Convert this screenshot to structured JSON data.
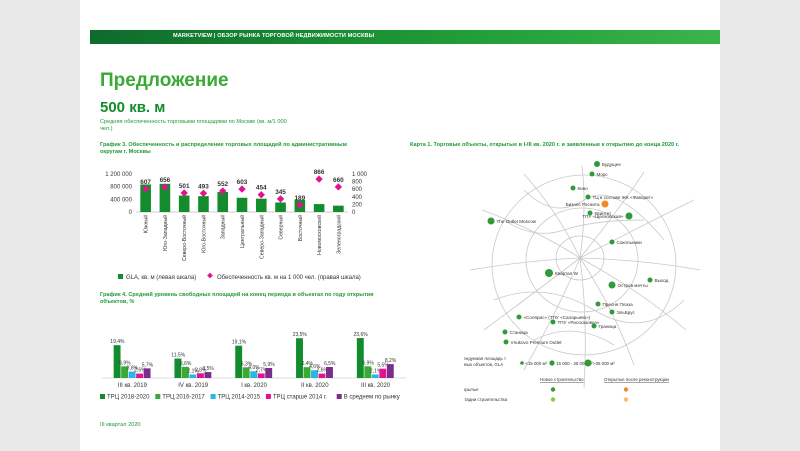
{
  "header": {
    "text": "MARKETVIEW | ОБЗОР РЫНКА ТОРГОВОЙ НЕДВИЖИМОСТИ МОСКВЫ"
  },
  "title": "Предложение",
  "big_value": "500 кв. м",
  "subtitle": "Средняя обеспеченность торговыми площадями по Москве (кв. м/1 000 чел.)",
  "footer": "III квартал 2020",
  "colors": {
    "green": "#128c2c",
    "light_green": "#3aa935",
    "magenta": "#e0148c",
    "cyan": "#27b6e6",
    "purple": "#7b2d8e"
  },
  "chart_data": [
    {
      "type": "bar",
      "title": "График 3. Обеспеченность и распределение торговых площадей по административным округам г. Москвы",
      "categories": [
        "Южный",
        "Юго-Западный",
        "Северо-Восточный",
        "Юго-Восточный",
        "Западный",
        "Центральный",
        "Северо-Западный",
        "Северный",
        "Восточный",
        "Новомосковский",
        "Зеленоградский"
      ],
      "series": [
        {
          "name": "GLA, кв. м (левая шкала)",
          "values": [
            870000,
            890000,
            520000,
            500000,
            630000,
            450000,
            420000,
            300000,
            380000,
            250000,
            200000
          ]
        },
        {
          "name": "Обеспеченность кв. м на 1 000 чел. (правая шкала)",
          "values": [
            607,
            656,
            501,
            493,
            552,
            603,
            454,
            345,
            189,
            866,
            660
          ]
        }
      ],
      "left_ticks": [
        "1 200 000",
        "800 000",
        "400 000",
        "0"
      ],
      "right_ticks": [
        "1 000",
        "800",
        "600",
        "400",
        "200",
        "0"
      ],
      "ylim_left": [
        0,
        1200000
      ],
      "ylim_right": [
        0,
        1000
      ]
    },
    {
      "type": "bar",
      "title": "График 4. Средний уровень свободных площадей на конец периода в объектах по году открытия объектов, %",
      "categories": [
        "III кв. 2019",
        "IV кв. 2019",
        "I кв. 2020",
        "II кв. 2020",
        "III кв. 2020"
      ],
      "series": [
        {
          "name": "ТРЦ 2018-2020",
          "values": [
            19.4,
            11.5,
            19.1,
            23.5,
            23.6
          ]
        },
        {
          "name": "ТРЦ 2016-2017",
          "values": [
            6.9,
            6.6,
            6.3,
            6.4,
            6.9
          ]
        },
        {
          "name": "ТРЦ 2014-2015",
          "values": [
            3.8,
            2.1,
            4.0,
            4.6,
            2.1
          ]
        },
        {
          "name": "ТРЦ старше 2014 г.",
          "values": [
            2.6,
            2.8,
            2.7,
            2.6,
            5.5
          ]
        },
        {
          "name": "В среднем по рынку",
          "values": [
            5.7,
            3.5,
            5.9,
            6.5,
            8.2
          ]
        }
      ],
      "labels": [
        [
          "19,4%",
          "6,9%",
          "3,8%",
          "2,6%",
          "5,7%"
        ],
        [
          "11,5%",
          "6,6%",
          "2,1%",
          "2,8%",
          "3,5%"
        ],
        [
          "19,1%",
          "6,3%",
          "4,0%",
          "2,7%",
          "5,9%"
        ],
        [
          "23,5%",
          "6,4%",
          "4,6%",
          "2,6%",
          "6,5%"
        ],
        [
          "23,6%",
          "6,9%",
          "2,1%",
          "5,5%",
          "8,2%"
        ]
      ],
      "ylim": [
        0,
        26
      ]
    }
  ],
  "map": {
    "title": "Карта 1. Торговые объекты, открытые в I-III кв. 2020 г. и заявленные к открытию до конца 2020 г.",
    "labels": [
      {
        "text": "Будущее",
        "c": "g"
      },
      {
        "text": "Mopc",
        "c": "g"
      },
      {
        "text": "Кино",
        "c": "g"
      },
      {
        "text": "ТЦ в составе ЖК «Фаворит»",
        "c": "g"
      },
      {
        "text": "Бизнес Роснита",
        "c": "o"
      },
      {
        "text": "ТПУ «Щелковская»",
        "c": "g"
      },
      {
        "text": "The Outlet Moscow",
        "c": "g"
      },
      {
        "text": "Квинтет",
        "c": "g"
      },
      {
        "text": "Сокольники",
        "c": "g"
      },
      {
        "text": "Квартал W",
        "c": "g"
      },
      {
        "text": "Остров мечты",
        "c": "g"
      },
      {
        "text": "Выход",
        "c": "g"
      },
      {
        "text": "Пресня Плаза",
        "c": "g"
      },
      {
        "text": "ЭльБрус",
        "c": "g"
      },
      {
        "text": "«Солярис» (ТПУ «Саларьево»)",
        "c": "g"
      },
      {
        "text": "ТПУ «Рассказовка»",
        "c": "g"
      },
      {
        "text": "Граница",
        "c": "g"
      },
      {
        "text": "Станица",
        "c": "g"
      },
      {
        "text": "Vnukovo Premium Outlet",
        "c": "g"
      }
    ],
    "legend_size_label": "Арендуемая площадь торговых объектов, GLA",
    "legend_sizes": [
      "<15 000 м²",
      "15 000 - 35 000 м²",
      ">35 000 м²"
    ],
    "legend_col1": "Новое строительство",
    "legend_col2": "Открытые после реконструкции",
    "legend_row1": "Открытые",
    "legend_row2": "В стадии строительства"
  }
}
